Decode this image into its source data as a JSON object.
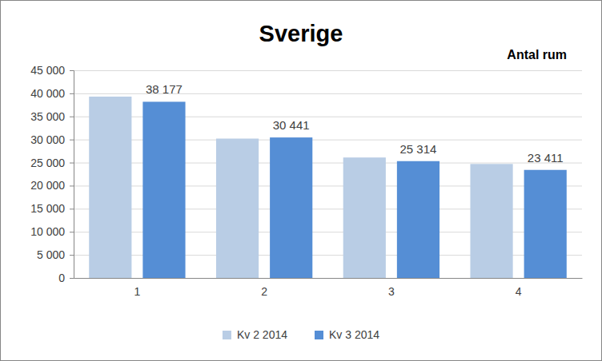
{
  "chart_data": {
    "type": "bar",
    "title": "Sverige",
    "subtitle": "Antal rum",
    "categories": [
      "1",
      "2",
      "3",
      "4"
    ],
    "series": [
      {
        "name": "Kv 2 2014",
        "color": "#b9cde5",
        "values": [
          39300,
          30200,
          26100,
          24700
        ]
      },
      {
        "name": "Kv 3 2014",
        "color": "#558ed5",
        "values": [
          38177,
          30441,
          25314,
          23411
        ],
        "data_labels": true,
        "value_labels": [
          "38 177",
          "30 441",
          "25 314",
          "23 411"
        ]
      }
    ],
    "ylim": [
      0,
      45000
    ],
    "yticks": [
      0,
      {
        "value": 5000,
        "label": "5 000"
      },
      {
        "value": 10000,
        "label": "10 000"
      },
      {
        "value": 15000,
        "label": "15 000"
      },
      {
        "value": 20000,
        "label": "20 000"
      },
      {
        "value": 25000,
        "label": "25 000"
      },
      {
        "value": 30000,
        "label": "30 000"
      },
      {
        "value": 35000,
        "label": "35 000"
      },
      {
        "value": 40000,
        "label": "40 000"
      },
      {
        "value": 45000,
        "label": "45 000"
      }
    ],
    "grid": true,
    "legend": "bottom"
  }
}
